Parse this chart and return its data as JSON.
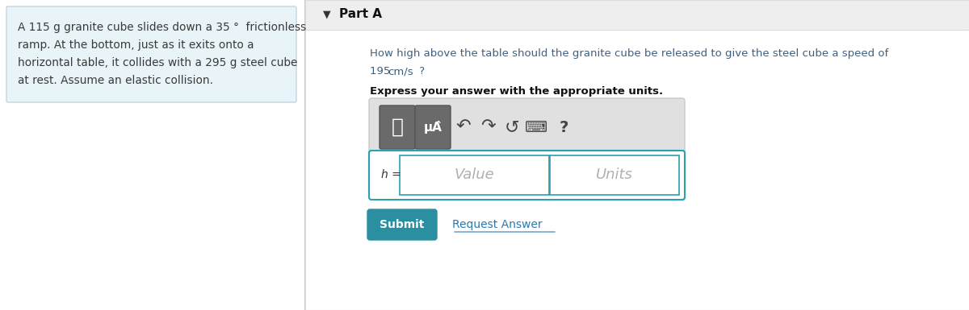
{
  "left_box_bg": "#e8f4f8",
  "left_box_border": "#c8dde8",
  "left_text_line1": "A 115 g granite cube slides down a 35 °  frictionless",
  "left_text_line2": "ramp. At the bottom, just as it exits onto a",
  "left_text_line3": "horizontal table, it collides with a 295 g steel cube",
  "left_text_line4": "at rest. Assume an elastic collision.",
  "left_text_color": "#3a3a3a",
  "divider_color": "#cccccc",
  "right_bg": "#f5f5f5",
  "part_a_label": "Part A",
  "part_a_triangle": "▼",
  "question_line1": "How high above the table should the granite cube be released to give the steel cube a speed of",
  "question_line2_normal": "195 ",
  "question_line2_code": "cm/s",
  "question_line2_end": " ?",
  "bold_text": "Express your answer with the appropriate units.",
  "toolbar_bg": "#e0e0e0",
  "toolbar_border": "#c8c8c8",
  "icon_box_bg": "#7a7a7a",
  "icon_text_color": "#ffffff",
  "icon1_text": "╱╱",
  "icon2_text": "μÂ",
  "input_box_border": "#2aa0b0",
  "input_box_bg": "#ffffff",
  "h_label": "h =",
  "value_placeholder": "Value",
  "units_placeholder": "Units",
  "placeholder_color": "#b0b0b0",
  "submit_bg": "#2a8fa0",
  "submit_text": "Submit",
  "submit_text_color": "#ffffff",
  "request_answer_text": "Request Answer",
  "request_answer_color": "#2a7ab0",
  "question_text_color": "#3d6080",
  "overall_bg": "#ffffff",
  "part_a_bg": "#eeeeee",
  "part_a_border": "#dddddd"
}
